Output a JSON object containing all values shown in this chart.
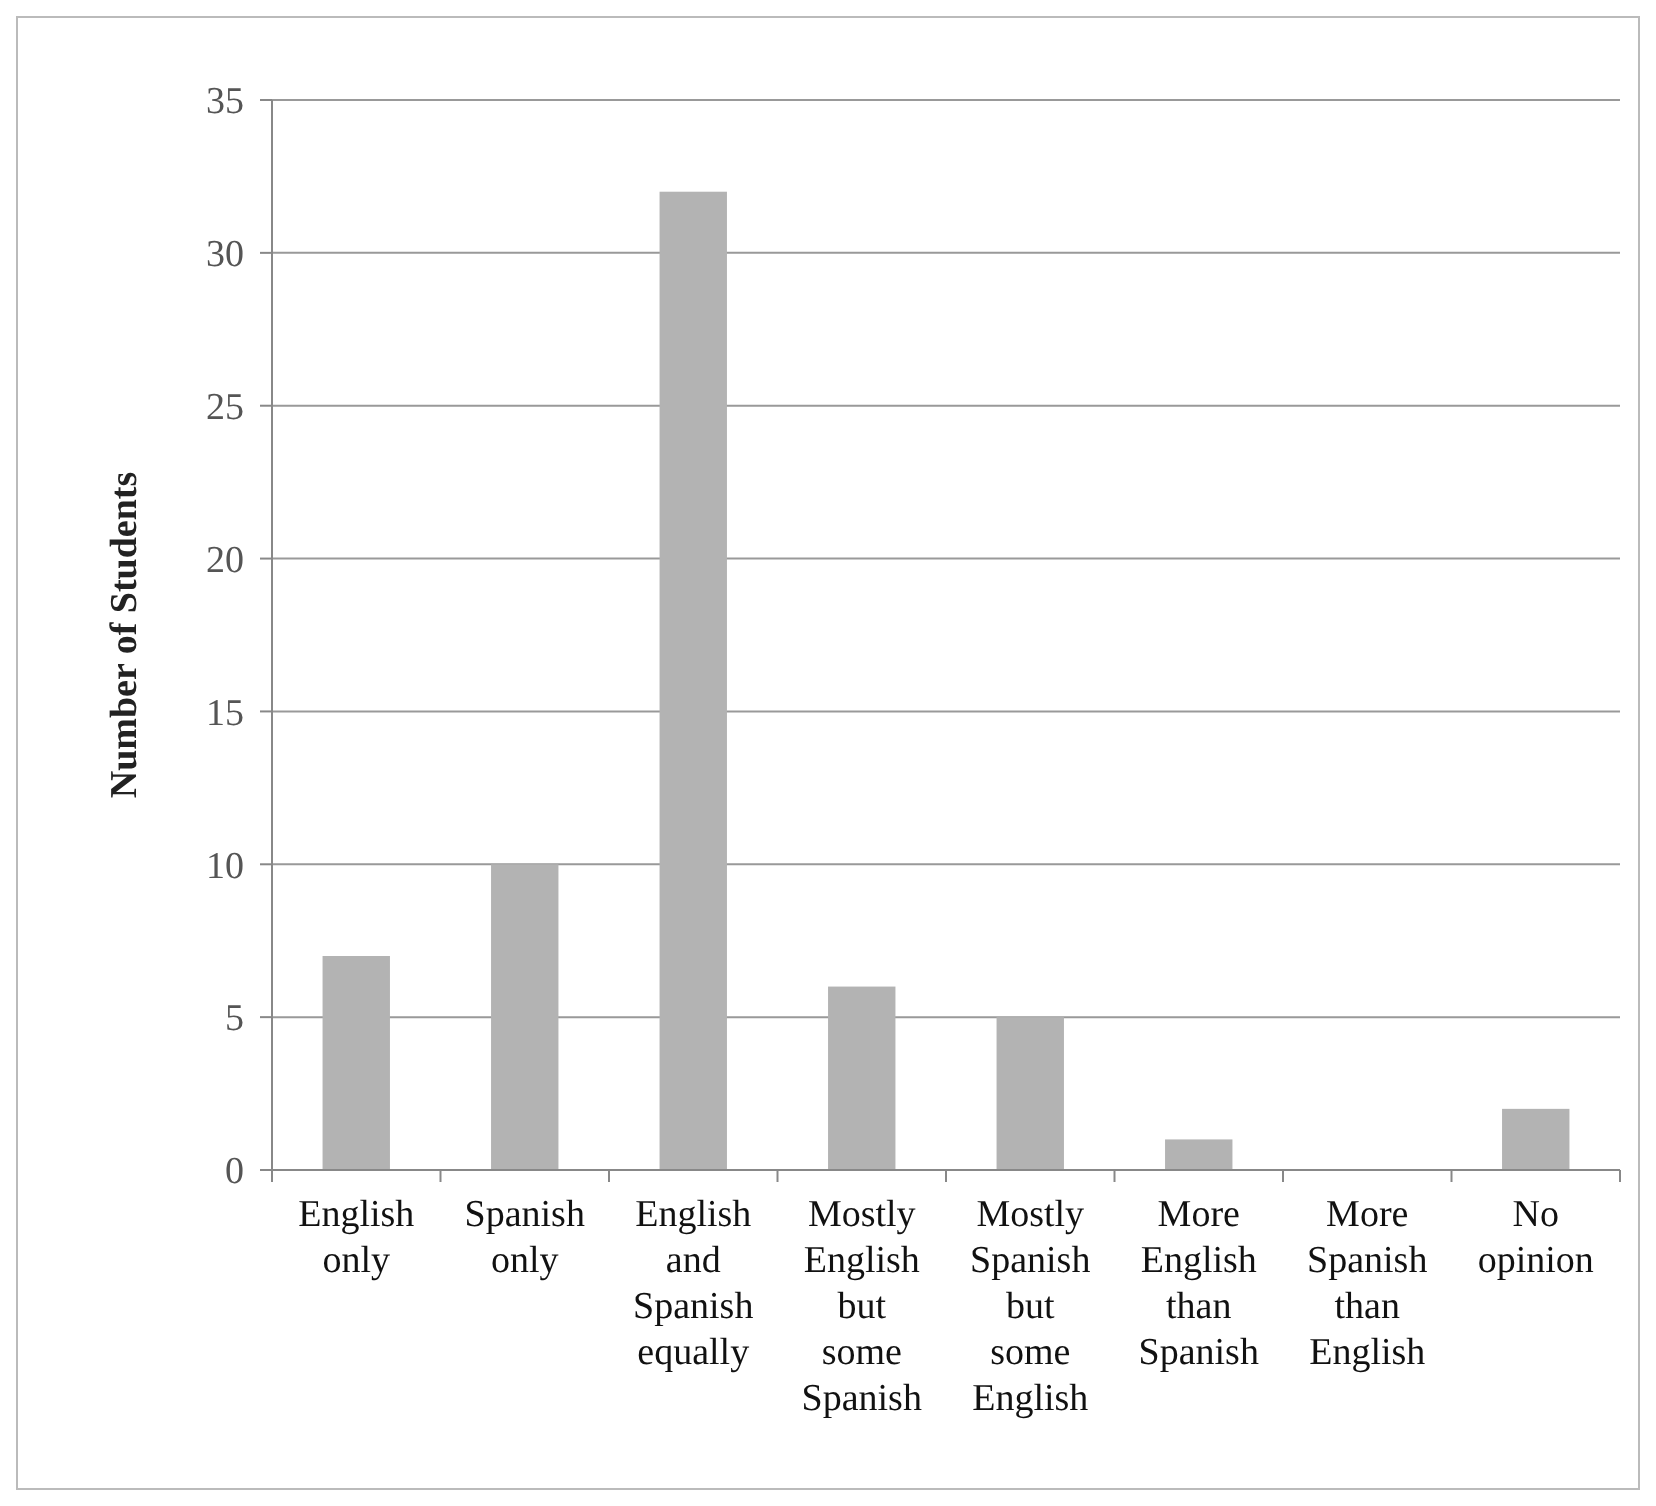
{
  "chart_data": {
    "type": "bar",
    "ylabel": "Number of Students",
    "categories": [
      "English only",
      "Spanish only",
      "English and Spanish equally",
      "Mostly English but some Spanish",
      "Mostly Spanish but some English",
      "More English than Spanish",
      "More Spanish than English",
      "No opinion"
    ],
    "values": [
      7,
      10,
      32,
      6,
      5,
      1,
      0,
      2
    ],
    "color": "#b3b3b3",
    "ylim": [
      0,
      35
    ],
    "yticks": [
      0,
      5,
      10,
      15,
      20,
      25,
      30,
      35
    ],
    "grid": "y"
  }
}
